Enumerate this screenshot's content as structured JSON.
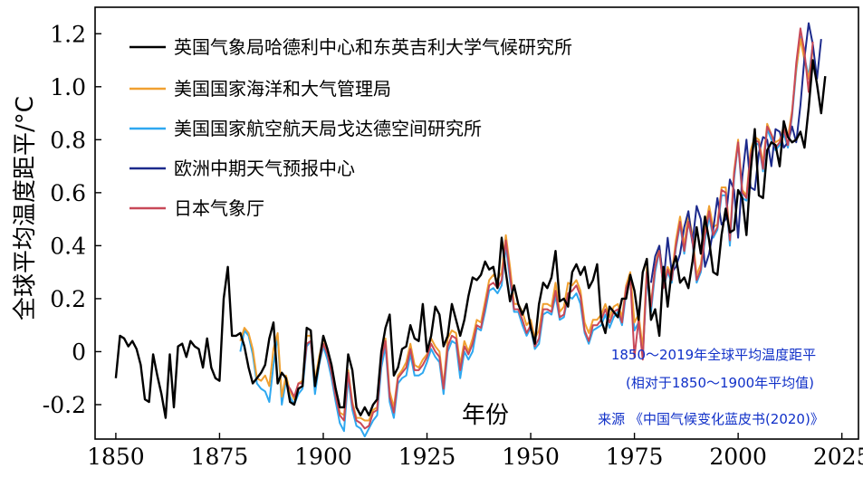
{
  "chart_data": {
    "type": "line",
    "title": "1850～2019年全球平均温度距平",
    "subtitle": "(相对于1850～1900年平均值)",
    "source": "来源 《中国气候变化蓝皮书(2020)》",
    "xlabel": "年份",
    "ylabel": "全球平均温度距平/°C",
    "xlim": [
      1845,
      2029
    ],
    "ylim": [
      -0.33,
      1.3
    ],
    "x_ticks": [
      1850,
      1875,
      1900,
      1925,
      1950,
      1975,
      2000,
      2025
    ],
    "y_ticks": [
      -0.2,
      0,
      0.2,
      0.4,
      0.6,
      0.8,
      1.0,
      1.2
    ],
    "y_tick_labels": [
      "-0.2",
      "0",
      "0.2",
      "0.4",
      "0.6",
      "0.8",
      "1.0",
      "1.2"
    ],
    "grid": false,
    "legend_position": "top-left",
    "colors": {
      "hadcrut": "#000000",
      "noaa": "#f0a030",
      "nasa": "#2ea8f0",
      "ecmwf": "#1c2a8c",
      "jma": "#c84858",
      "note": "#1030c8"
    },
    "series": [
      {
        "name": "英国气象局哈德利中心和东英吉利大学气候研究所",
        "key": "hadcrut",
        "start_year": 1850,
        "values": [
          -0.1,
          0.06,
          0.05,
          0.02,
          0.04,
          0.01,
          -0.05,
          -0.18,
          -0.19,
          -0.01,
          -0.09,
          -0.16,
          -0.25,
          -0.01,
          -0.21,
          0.02,
          0.03,
          -0.02,
          0.04,
          0.02,
          0.01,
          -0.06,
          0.05,
          -0.06,
          -0.1,
          -0.11,
          0.2,
          0.32,
          0.06,
          0.06,
          0.07,
          0.02,
          -0.06,
          -0.12,
          -0.1,
          -0.08,
          -0.05,
          0.05,
          0.11,
          -0.12,
          -0.08,
          -0.1,
          -0.19,
          -0.2,
          -0.14,
          -0.13,
          0.09,
          0.08,
          -0.13,
          -0.04,
          0.06,
          0.01,
          -0.05,
          -0.14,
          -0.21,
          -0.21,
          -0.01,
          -0.07,
          -0.21,
          -0.24,
          -0.21,
          -0.24,
          -0.2,
          -0.18,
          0.0,
          0.09,
          0.14,
          -0.09,
          -0.06,
          0.01,
          0.02,
          0.1,
          0.05,
          0.04,
          0.18,
          0.0,
          0.06,
          0.17,
          0.14,
          0.02,
          0.06,
          0.18,
          0.12,
          0.06,
          0.12,
          0.21,
          0.28,
          0.27,
          0.29,
          0.34,
          0.31,
          0.32,
          0.24,
          0.43,
          0.3,
          0.19,
          0.25,
          0.18,
          0.14,
          0.18,
          0.09,
          0.03,
          0.18,
          0.26,
          0.24,
          0.28,
          0.38,
          0.19,
          0.2,
          0.17,
          0.3,
          0.33,
          0.29,
          0.32,
          0.24,
          0.27,
          0.33,
          0.12,
          0.07,
          0.17,
          0.15,
          0.13,
          0.2,
          0.2,
          0.29,
          0.23,
          0.12,
          0.3,
          0.35,
          0.12,
          0.16,
          0.06,
          0.32,
          0.17,
          0.31,
          0.36,
          0.26,
          0.28,
          0.24,
          0.34,
          0.47,
          0.37,
          0.51,
          0.42,
          0.3,
          0.29,
          0.44,
          0.54,
          0.45,
          0.46,
          0.61,
          0.58,
          0.44,
          0.68,
          0.84,
          0.59,
          0.58,
          0.76,
          0.79,
          0.78,
          0.7,
          0.87,
          0.81,
          0.79,
          0.8,
          0.83,
          0.77,
          0.92,
          1.1,
          1.01,
          0.9,
          1.04
        ]
      },
      {
        "name": "美国国家海洋和大气管理局",
        "key": "noaa",
        "start_year": 1880,
        "values": [
          0.04,
          0.09,
          0.07,
          0.01,
          -0.1,
          -0.11,
          -0.09,
          -0.13,
          0.01,
          0.07,
          -0.17,
          -0.09,
          -0.15,
          -0.18,
          -0.12,
          -0.11,
          0.06,
          0.06,
          -0.11,
          -0.02,
          0.05,
          0.0,
          -0.06,
          -0.15,
          -0.23,
          -0.24,
          -0.07,
          -0.19,
          -0.25,
          -0.25,
          -0.26,
          -0.26,
          -0.22,
          -0.21,
          -0.02,
          0.05,
          -0.15,
          -0.21,
          -0.09,
          -0.07,
          -0.04,
          0.03,
          -0.05,
          -0.06,
          -0.03,
          -0.01,
          0.05,
          0.02,
          0.0,
          -0.13,
          0.05,
          0.08,
          0.07,
          -0.05,
          0.04,
          0.0,
          0.05,
          0.12,
          0.11,
          0.19,
          0.27,
          0.29,
          0.27,
          0.3,
          0.44,
          0.32,
          0.18,
          0.18,
          0.15,
          0.1,
          0.12,
          0.05,
          0.08,
          0.18,
          0.18,
          0.17,
          0.26,
          0.15,
          0.17,
          0.26,
          0.25,
          0.27,
          0.23,
          0.11,
          0.07,
          0.12,
          0.12,
          0.14,
          0.18,
          0.13,
          0.17,
          0.18,
          0.13,
          0.25,
          0.3,
          0.11,
          0.14,
          0.01,
          0.32,
          0.18,
          0.32,
          0.4,
          0.26,
          0.32,
          0.29,
          0.42,
          0.51,
          0.4,
          0.52,
          0.44,
          0.29,
          0.33,
          0.46,
          0.55,
          0.47,
          0.48,
          0.62,
          0.62,
          0.43,
          0.68,
          0.8,
          0.61,
          0.59,
          0.76,
          0.81,
          0.8,
          0.71,
          0.86,
          0.82,
          0.79,
          0.8,
          0.85,
          0.81,
          0.91,
          1.07,
          1.18,
          1.1,
          1.03,
          1.14
        ]
      },
      {
        "name": "美国国家航空航天局戈达德空间研究所",
        "key": "nasa",
        "start_year": 1880,
        "values": [
          0.0,
          0.08,
          0.06,
          -0.01,
          -0.12,
          -0.14,
          -0.15,
          -0.19,
          -0.05,
          0.06,
          -0.2,
          -0.11,
          -0.17,
          -0.2,
          -0.16,
          -0.14,
          0.02,
          0.04,
          -0.16,
          -0.05,
          0.02,
          -0.03,
          -0.1,
          -0.19,
          -0.27,
          -0.3,
          -0.1,
          -0.22,
          -0.28,
          -0.29,
          -0.32,
          -0.29,
          -0.26,
          -0.24,
          -0.06,
          0.02,
          -0.19,
          -0.25,
          -0.12,
          -0.1,
          -0.09,
          -0.01,
          -0.09,
          -0.09,
          -0.08,
          -0.04,
          0.01,
          -0.02,
          -0.04,
          -0.16,
          0.0,
          0.04,
          0.03,
          -0.1,
          0.0,
          -0.03,
          0.0,
          0.09,
          0.08,
          0.15,
          0.23,
          0.24,
          0.22,
          0.25,
          0.4,
          0.27,
          0.15,
          0.15,
          0.1,
          0.06,
          0.09,
          0.01,
          0.03,
          0.14,
          0.15,
          0.14,
          0.21,
          0.12,
          0.13,
          0.21,
          0.2,
          0.22,
          0.18,
          0.07,
          0.03,
          0.08,
          0.09,
          0.1,
          0.14,
          0.09,
          0.13,
          0.15,
          0.1,
          0.22,
          0.27,
          0.08,
          0.11,
          -0.02,
          0.28,
          0.15,
          0.3,
          0.38,
          0.24,
          0.3,
          0.26,
          0.39,
          0.48,
          0.37,
          0.49,
          0.41,
          0.26,
          0.3,
          0.42,
          0.51,
          0.43,
          0.46,
          0.59,
          0.59,
          0.4,
          0.65,
          0.79,
          0.58,
          0.57,
          0.73,
          0.79,
          0.78,
          0.68,
          0.84,
          0.8,
          0.76,
          0.78,
          0.82,
          0.77,
          0.89,
          1.06,
          1.19,
          1.11,
          1.04,
          1.16
        ]
      },
      {
        "name": "欧洲中期天气预报中心",
        "key": "ecmwf",
        "start_year": 1979,
        "values": [
          0.26,
          0.36,
          0.4,
          0.26,
          0.43,
          0.3,
          0.32,
          0.37,
          0.47,
          0.53,
          0.41,
          0.55,
          0.5,
          0.32,
          0.37,
          0.46,
          0.58,
          0.48,
          0.5,
          0.65,
          0.61,
          0.43,
          0.66,
          0.8,
          0.62,
          0.61,
          0.75,
          0.81,
          0.8,
          0.7,
          0.84,
          0.83,
          0.77,
          0.79,
          0.85,
          0.79,
          0.93,
          1.11,
          1.24,
          1.16,
          1.03,
          1.18
        ]
      },
      {
        "name": "日本气象厅",
        "key": "jma",
        "start_year": 1891,
        "values": [
          -0.12,
          -0.14,
          -0.17,
          -0.12,
          -0.12,
          0.03,
          0.04,
          -0.13,
          -0.04,
          0.03,
          -0.01,
          -0.08,
          -0.17,
          -0.24,
          -0.26,
          -0.08,
          -0.2,
          -0.26,
          -0.27,
          -0.29,
          -0.28,
          -0.23,
          -0.22,
          -0.03,
          0.04,
          -0.17,
          -0.23,
          -0.1,
          -0.08,
          -0.06,
          0.01,
          -0.07,
          -0.07,
          -0.05,
          -0.02,
          0.03,
          0.0,
          -0.02,
          -0.14,
          0.02,
          0.06,
          0.05,
          -0.07,
          0.02,
          -0.01,
          0.03,
          0.1,
          0.09,
          0.17,
          0.25,
          0.26,
          0.24,
          0.27,
          0.42,
          0.29,
          0.16,
          0.16,
          0.12,
          0.07,
          0.1,
          0.02,
          0.05,
          0.16,
          0.16,
          0.15,
          0.23,
          0.13,
          0.14,
          0.22,
          0.23,
          0.25,
          0.21,
          0.08,
          0.04,
          0.1,
          0.1,
          0.12,
          0.16,
          0.11,
          0.15,
          0.16,
          0.11,
          0.24,
          0.28,
          -0.02,
          0.12,
          -0.03,
          0.3,
          0.17,
          0.32,
          0.38,
          0.24,
          0.31,
          0.27,
          0.4,
          0.49,
          0.38,
          0.49,
          0.42,
          0.27,
          0.31,
          0.44,
          0.53,
          0.44,
          0.47,
          0.61,
          0.6,
          0.42,
          0.67,
          0.79,
          0.6,
          0.58,
          0.74,
          0.8,
          0.79,
          0.69,
          0.85,
          0.82,
          0.77,
          0.79,
          0.84,
          0.78,
          0.9,
          1.09,
          1.22,
          1.13,
          0.98,
          1.17
        ]
      }
    ]
  }
}
